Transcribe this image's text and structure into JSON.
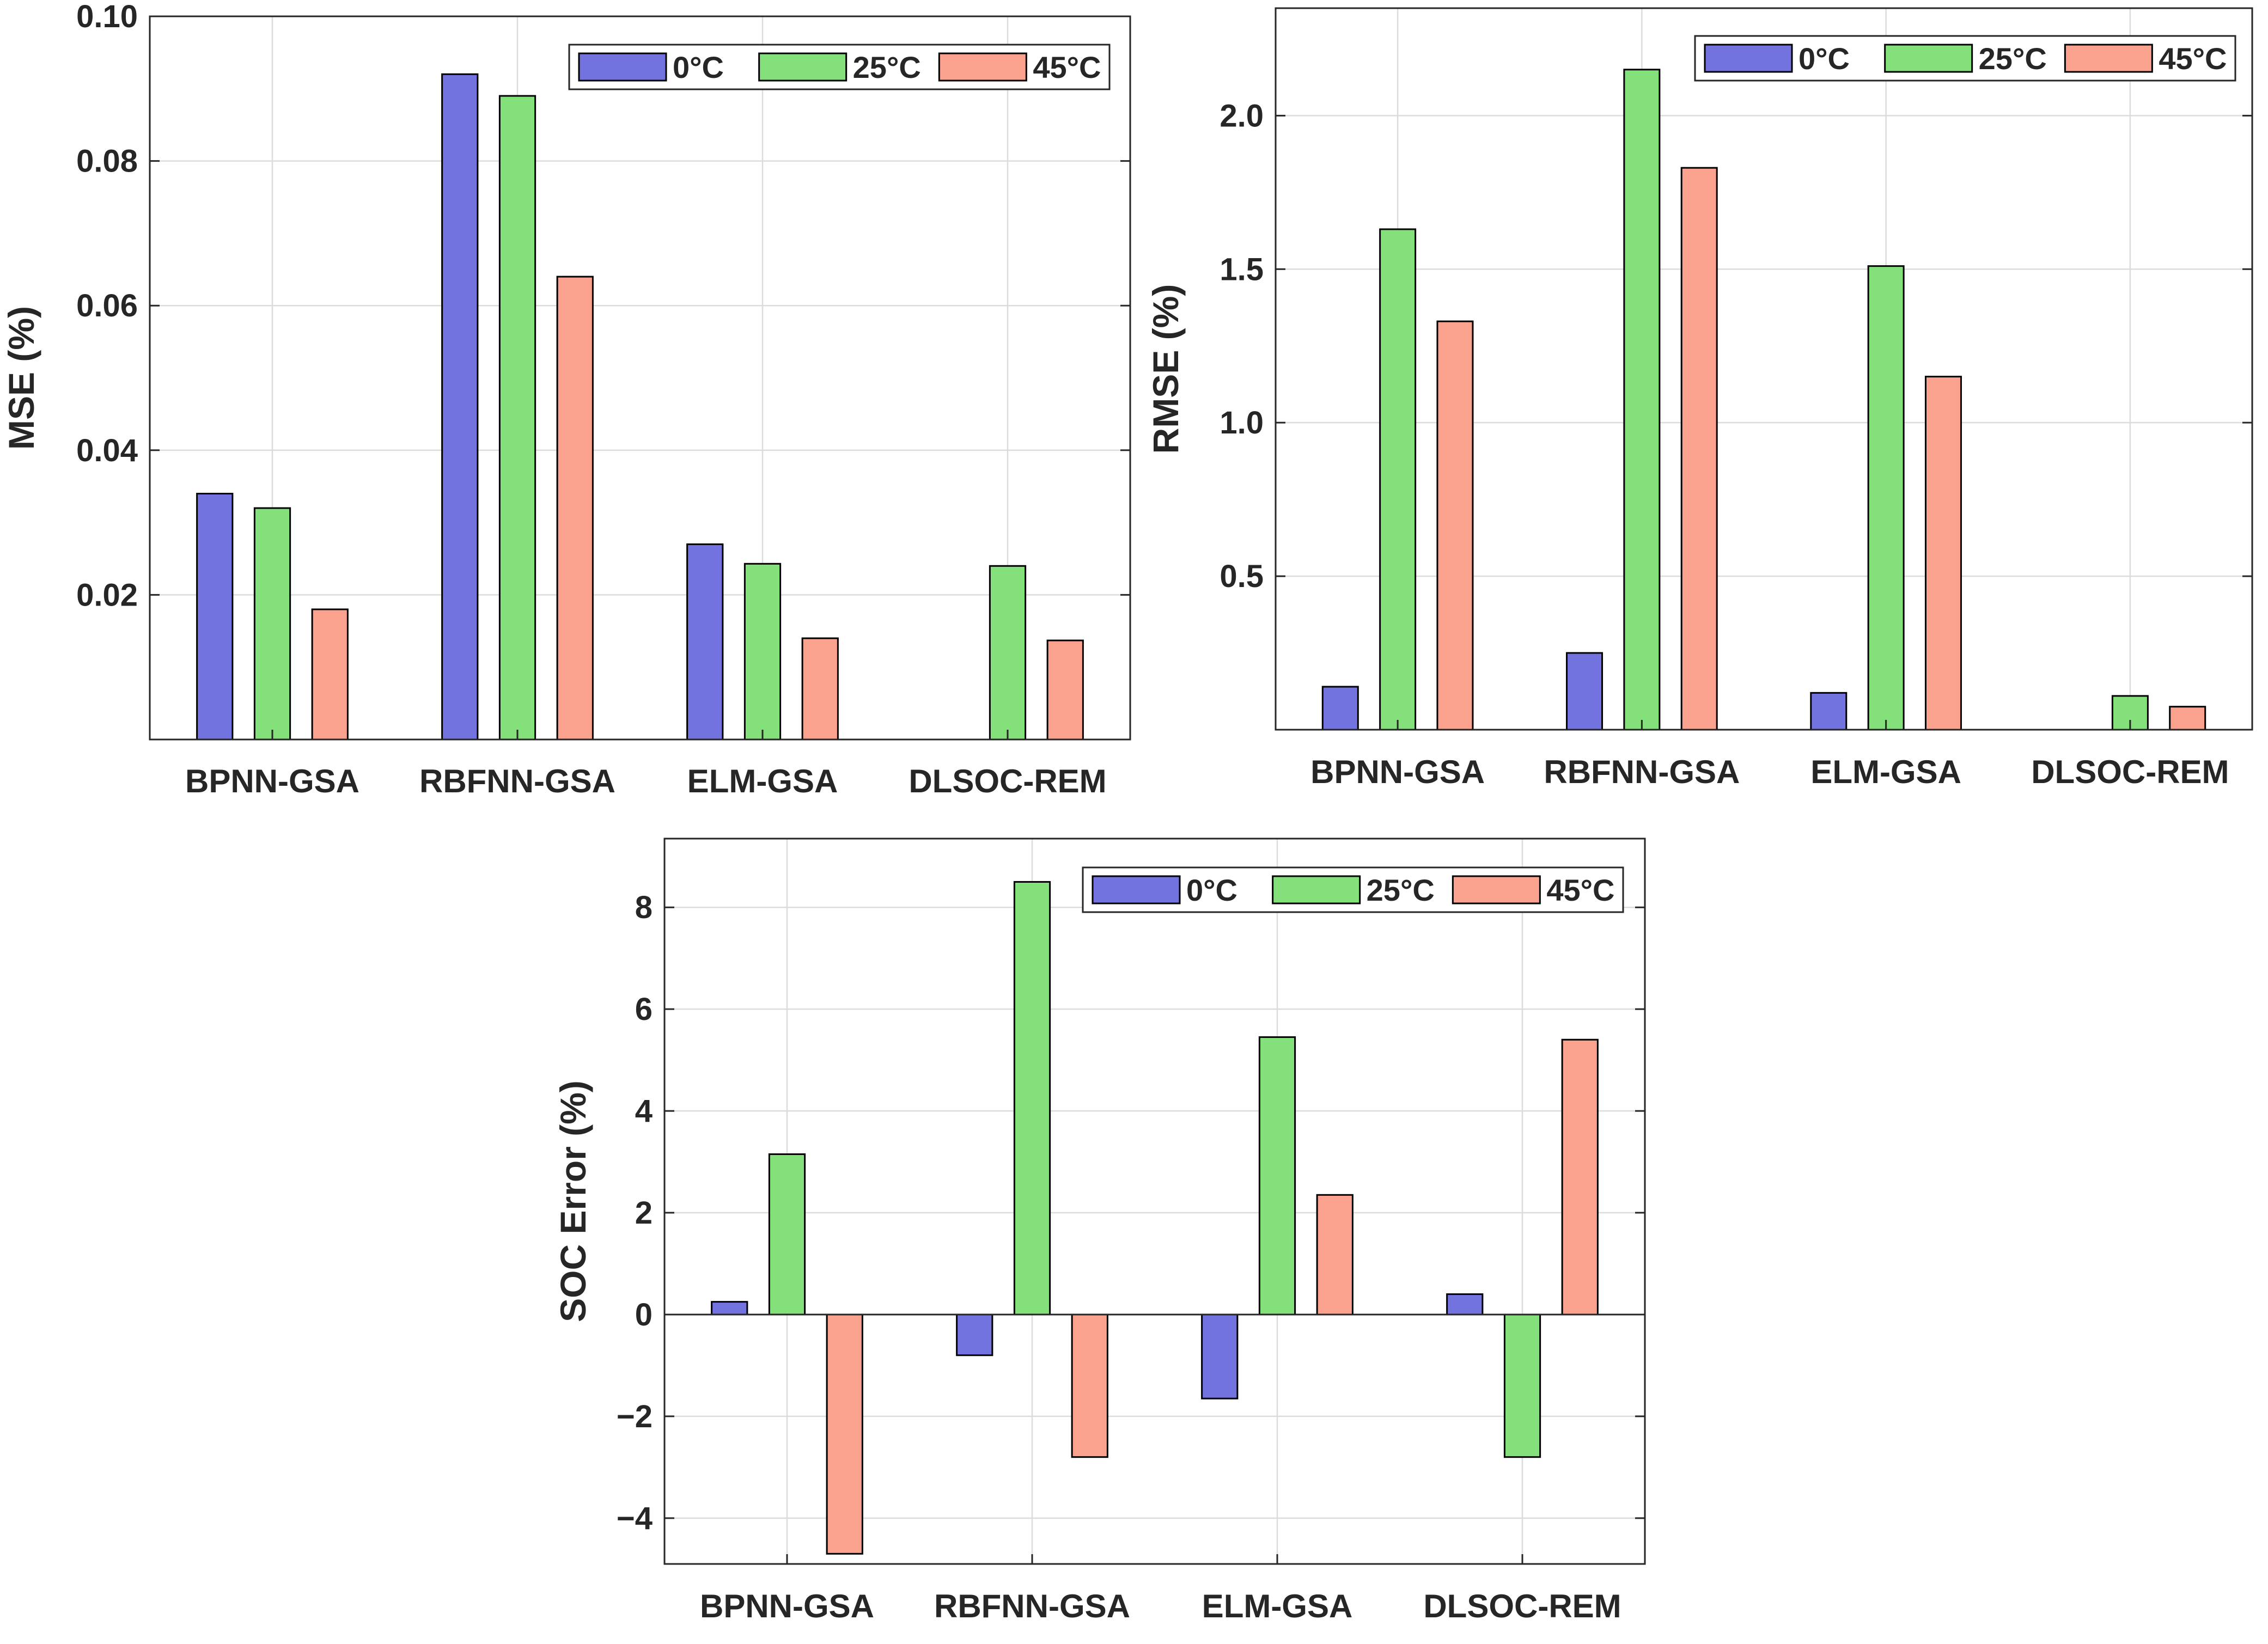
{
  "colors": {
    "series_0C": "#7373e0",
    "series_25C": "#84e07a",
    "series_45C": "#fba28f"
  },
  "chart_data": [
    {
      "id": "mse",
      "type": "bar",
      "title": "",
      "xlabel": "",
      "ylabel": "MSE (%)",
      "categories": [
        "BPNN-GSA",
        "RBFNN-GSA",
        "ELM-GSA",
        "DLSOC-REM"
      ],
      "ylim": [
        0,
        0.1
      ],
      "yticks": [
        0.02,
        0.04,
        0.06,
        0.08,
        0.1
      ],
      "ytick_labels": [
        "0.02",
        "0.04",
        "0.06",
        "0.08",
        "0.10"
      ],
      "legend": "top-right",
      "series": [
        {
          "name": "0°C",
          "values": [
            0.034,
            0.092,
            0.027,
            0
          ]
        },
        {
          "name": "25°C",
          "values": [
            0.032,
            0.089,
            0.0243,
            0.024
          ]
        },
        {
          "name": "45°C",
          "values": [
            0.018,
            0.064,
            0.014,
            0.0137
          ]
        }
      ]
    },
    {
      "id": "rmse",
      "type": "bar",
      "title": "",
      "xlabel": "",
      "ylabel": "RMSE (%)",
      "categories": [
        "BPNN-GSA",
        "RBFNN-GSA",
        "ELM-GSA",
        "DLSOC-REM"
      ],
      "ylim": [
        0,
        2.35
      ],
      "yticks": [
        0.5,
        1.0,
        1.5,
        2.0
      ],
      "ytick_labels": [
        "0.5",
        "1.0",
        "1.5",
        "2.0"
      ],
      "legend": "top-right",
      "series": [
        {
          "name": "0°C",
          "values": [
            0.14,
            0.25,
            0.12,
            0
          ]
        },
        {
          "name": "25°C",
          "values": [
            1.63,
            2.15,
            1.51,
            0.11
          ]
        },
        {
          "name": "45°C",
          "values": [
            1.33,
            1.83,
            1.15,
            0.075
          ]
        }
      ]
    },
    {
      "id": "soc_error",
      "type": "bar",
      "title": "",
      "xlabel": "",
      "ylabel": "SOC Error (%)",
      "categories": [
        "BPNN-GSA",
        "RBFNN-GSA",
        "ELM-GSA",
        "DLSOC-REM"
      ],
      "ylim": [
        -4.9,
        9.35
      ],
      "yticks": [
        -4,
        -2,
        0,
        2,
        4,
        6,
        8
      ],
      "ytick_labels": [
        "−4",
        "−2",
        "0",
        "2",
        "4",
        "6",
        "8"
      ],
      "legend": "top-right",
      "series": [
        {
          "name": "0°C",
          "values": [
            0.25,
            -0.8,
            -1.65,
            0.4
          ]
        },
        {
          "name": "25°C",
          "values": [
            3.15,
            8.5,
            5.45,
            -2.8
          ]
        },
        {
          "name": "45°C",
          "values": [
            -4.7,
            -2.8,
            2.35,
            5.4
          ]
        }
      ]
    }
  ]
}
